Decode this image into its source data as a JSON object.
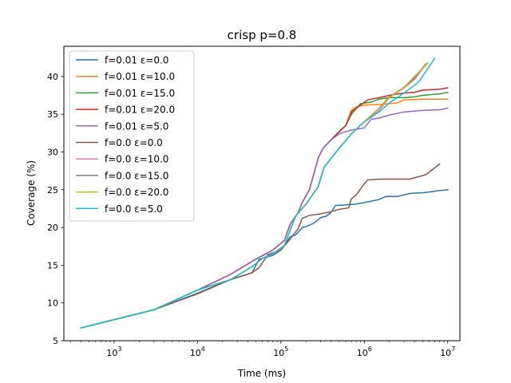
{
  "chart_data": {
    "type": "line",
    "title": "crisp p=0.8",
    "xlabel": "Time (ms)",
    "ylabel": "Coverage (%)",
    "xscale": "log",
    "xlim": [
      250,
      14000000
    ],
    "ylim": [
      5,
      44
    ],
    "x_tick_values": [
      1000,
      10000,
      100000,
      1000000,
      10000000
    ],
    "x_tick_labels": [
      {
        "base": "10",
        "exp": "3"
      },
      {
        "base": "10",
        "exp": "4"
      },
      {
        "base": "10",
        "exp": "5"
      },
      {
        "base": "10",
        "exp": "6"
      },
      {
        "base": "10",
        "exp": "7"
      }
    ],
    "y_ticks": [
      5,
      10,
      15,
      20,
      25,
      30,
      35,
      40
    ],
    "grid": false,
    "legend_position": "upper-left",
    "series": [
      {
        "name": "f=0.01 ε=0.0",
        "color": "#1f77b4",
        "points": [
          [
            400,
            6.7
          ],
          [
            3000,
            9.1
          ],
          [
            10000,
            11.3
          ],
          [
            25000,
            13.1
          ],
          [
            45000,
            14.0
          ],
          [
            55000,
            15.8
          ],
          [
            80000,
            16.3
          ],
          [
            100000,
            17.0
          ],
          [
            130000,
            18.8
          ],
          [
            150000,
            19.0
          ],
          [
            180000,
            20.0
          ],
          [
            200000,
            20.1
          ],
          [
            250000,
            20.6
          ],
          [
            300000,
            21.3
          ],
          [
            350000,
            21.5
          ],
          [
            400000,
            22.0
          ],
          [
            450000,
            22.9
          ],
          [
            600000,
            23.0
          ],
          [
            800000,
            23.1
          ],
          [
            1000000,
            23.3
          ],
          [
            1500000,
            23.7
          ],
          [
            1800000,
            24.1
          ],
          [
            2500000,
            24.1
          ],
          [
            3500000,
            24.5
          ],
          [
            5000000,
            24.6
          ],
          [
            6000000,
            24.7
          ],
          [
            8000000,
            24.9
          ],
          [
            10000000,
            25.0
          ]
        ]
      },
      {
        "name": "f=0.01 ε=10.0",
        "color": "#ff7f0e",
        "points": [
          [
            400,
            6.7
          ],
          [
            3000,
            9.1
          ],
          [
            10000,
            11.7
          ],
          [
            25000,
            13.8
          ],
          [
            50000,
            15.8
          ],
          [
            80000,
            17.0
          ],
          [
            110000,
            18.3
          ],
          [
            130000,
            20.5
          ],
          [
            160000,
            21.9
          ],
          [
            180000,
            23.3
          ],
          [
            220000,
            25.0
          ],
          [
            280000,
            29.2
          ],
          [
            320000,
            30.5
          ],
          [
            400000,
            31.6
          ],
          [
            500000,
            32.7
          ],
          [
            600000,
            33.5
          ],
          [
            700000,
            35.5
          ],
          [
            800000,
            36.0
          ],
          [
            1000000,
            36.2
          ],
          [
            1500000,
            36.3
          ],
          [
            2000000,
            36.4
          ],
          [
            2500000,
            36.5
          ],
          [
            3000000,
            36.9
          ],
          [
            5000000,
            37.0
          ],
          [
            10000000,
            37.0
          ]
        ]
      },
      {
        "name": "f=0.01 ε=15.0",
        "color": "#2ca02c",
        "points": [
          [
            400,
            6.7
          ],
          [
            3000,
            9.1
          ],
          [
            10000,
            11.7
          ],
          [
            25000,
            13.8
          ],
          [
            50000,
            15.8
          ],
          [
            80000,
            17.0
          ],
          [
            110000,
            18.3
          ],
          [
            130000,
            20.5
          ],
          [
            160000,
            21.9
          ],
          [
            180000,
            23.3
          ],
          [
            220000,
            25.0
          ],
          [
            280000,
            29.2
          ],
          [
            320000,
            30.5
          ],
          [
            400000,
            31.6
          ],
          [
            500000,
            32.7
          ],
          [
            600000,
            33.5
          ],
          [
            700000,
            35.0
          ],
          [
            900000,
            36.4
          ],
          [
            1200000,
            36.6
          ],
          [
            1500000,
            37.0
          ],
          [
            2000000,
            37.2
          ],
          [
            3000000,
            37.2
          ],
          [
            4000000,
            37.3
          ],
          [
            5000000,
            37.5
          ],
          [
            8000000,
            37.7
          ],
          [
            10000000,
            37.9
          ]
        ]
      },
      {
        "name": "f=0.01 ε=20.0",
        "color": "#d62728",
        "points": [
          [
            400,
            6.7
          ],
          [
            3000,
            9.1
          ],
          [
            10000,
            11.7
          ],
          [
            25000,
            13.8
          ],
          [
            50000,
            15.8
          ],
          [
            80000,
            17.0
          ],
          [
            110000,
            18.3
          ],
          [
            130000,
            20.5
          ],
          [
            160000,
            21.9
          ],
          [
            180000,
            23.3
          ],
          [
            220000,
            25.0
          ],
          [
            280000,
            29.2
          ],
          [
            320000,
            30.5
          ],
          [
            400000,
            31.6
          ],
          [
            500000,
            32.7
          ],
          [
            600000,
            33.5
          ],
          [
            700000,
            35.3
          ],
          [
            900000,
            36.2
          ],
          [
            1100000,
            36.9
          ],
          [
            1500000,
            37.2
          ],
          [
            2000000,
            37.5
          ],
          [
            3000000,
            37.8
          ],
          [
            4000000,
            37.9
          ],
          [
            5000000,
            38.2
          ],
          [
            8000000,
            38.3
          ],
          [
            10000000,
            38.5
          ]
        ]
      },
      {
        "name": "f=0.01 ε=5.0",
        "color": "#9467bd",
        "points": [
          [
            400,
            6.7
          ],
          [
            3000,
            9.1
          ],
          [
            10000,
            11.7
          ],
          [
            25000,
            13.8
          ],
          [
            50000,
            15.8
          ],
          [
            80000,
            17.0
          ],
          [
            110000,
            18.3
          ],
          [
            130000,
            20.5
          ],
          [
            160000,
            21.9
          ],
          [
            180000,
            23.3
          ],
          [
            220000,
            25.0
          ],
          [
            280000,
            29.2
          ],
          [
            320000,
            30.5
          ],
          [
            400000,
            31.6
          ],
          [
            500000,
            32.4
          ],
          [
            600000,
            32.7
          ],
          [
            700000,
            32.9
          ],
          [
            900000,
            33.1
          ],
          [
            1000000,
            33.2
          ],
          [
            1200000,
            34.3
          ],
          [
            1500000,
            34.5
          ],
          [
            2000000,
            34.9
          ],
          [
            3000000,
            35.3
          ],
          [
            5000000,
            35.5
          ],
          [
            8000000,
            35.6
          ],
          [
            10000000,
            35.8
          ]
        ]
      },
      {
        "name": "f=0.0 ε=0.0",
        "color": "#8c564b",
        "points": [
          [
            400,
            6.7
          ],
          [
            3000,
            9.1
          ],
          [
            10000,
            11.2
          ],
          [
            25000,
            13.1
          ],
          [
            45000,
            14.0
          ],
          [
            55000,
            14.7
          ],
          [
            70000,
            16.4
          ],
          [
            100000,
            17.0
          ],
          [
            130000,
            18.5
          ],
          [
            160000,
            19.8
          ],
          [
            180000,
            21.2
          ],
          [
            220000,
            21.6
          ],
          [
            300000,
            21.8
          ],
          [
            400000,
            22.1
          ],
          [
            500000,
            22.4
          ],
          [
            650000,
            22.6
          ],
          [
            700000,
            23.8
          ],
          [
            800000,
            24.3
          ],
          [
            1000000,
            25.8
          ],
          [
            1100000,
            26.3
          ],
          [
            1500000,
            26.4
          ],
          [
            2000000,
            26.4
          ],
          [
            3500000,
            26.4
          ],
          [
            5500000,
            27.0
          ],
          [
            8000000,
            28.4
          ]
        ]
      },
      {
        "name": "f=0.0 ε=10.0",
        "color": "#e377c2",
        "points": [
          [
            400,
            6.7
          ],
          [
            3000,
            9.1
          ],
          [
            10000,
            11.7
          ],
          [
            25000,
            13.1
          ],
          [
            45000,
            14.8
          ],
          [
            60000,
            15.9
          ],
          [
            80000,
            16.5
          ],
          [
            110000,
            17.6
          ],
          [
            150000,
            21.5
          ],
          [
            200000,
            23.1
          ],
          [
            280000,
            25.4
          ],
          [
            330000,
            28.0
          ],
          [
            500000,
            30.5
          ],
          [
            700000,
            32.4
          ],
          [
            1000000,
            34.0
          ],
          [
            1500000,
            35.5
          ],
          [
            2000000,
            37.2
          ],
          [
            3000000,
            38.5
          ],
          [
            4000000,
            39.6
          ],
          [
            5500000,
            41.6
          ]
        ]
      },
      {
        "name": "f=0.0 ε=15.0",
        "color": "#7f7f7f",
        "points": [
          [
            400,
            6.7
          ],
          [
            3000,
            9.1
          ],
          [
            10000,
            11.7
          ],
          [
            25000,
            13.1
          ],
          [
            45000,
            14.8
          ],
          [
            60000,
            15.9
          ],
          [
            80000,
            16.5
          ],
          [
            110000,
            17.6
          ],
          [
            150000,
            21.5
          ],
          [
            200000,
            23.1
          ],
          [
            280000,
            25.4
          ],
          [
            330000,
            28.0
          ],
          [
            500000,
            30.5
          ],
          [
            700000,
            32.4
          ],
          [
            1000000,
            34.0
          ],
          [
            1500000,
            35.8
          ],
          [
            2000000,
            37.3
          ],
          [
            3000000,
            38.6
          ],
          [
            4000000,
            39.8
          ],
          [
            5500000,
            41.7
          ]
        ]
      },
      {
        "name": "f=0.0 ε=20.0",
        "color": "#bcbd22",
        "points": [
          [
            400,
            6.7
          ],
          [
            3000,
            9.1
          ],
          [
            10000,
            11.7
          ],
          [
            25000,
            13.1
          ],
          [
            45000,
            14.8
          ],
          [
            60000,
            15.9
          ],
          [
            80000,
            16.5
          ],
          [
            110000,
            17.6
          ],
          [
            150000,
            21.5
          ],
          [
            200000,
            23.1
          ],
          [
            280000,
            25.4
          ],
          [
            330000,
            28.0
          ],
          [
            500000,
            30.5
          ],
          [
            700000,
            32.4
          ],
          [
            1000000,
            34.0
          ],
          [
            1500000,
            35.8
          ],
          [
            2000000,
            37.2
          ],
          [
            3000000,
            38.6
          ],
          [
            4000000,
            40.0
          ],
          [
            5800000,
            41.8
          ]
        ]
      },
      {
        "name": "f=0.0 ε=5.0",
        "color": "#17becf",
        "points": [
          [
            400,
            6.7
          ],
          [
            3000,
            9.1
          ],
          [
            10000,
            11.7
          ],
          [
            25000,
            13.1
          ],
          [
            45000,
            14.8
          ],
          [
            60000,
            15.9
          ],
          [
            80000,
            16.5
          ],
          [
            110000,
            17.6
          ],
          [
            150000,
            21.5
          ],
          [
            200000,
            23.1
          ],
          [
            280000,
            25.4
          ],
          [
            330000,
            28.0
          ],
          [
            500000,
            30.5
          ],
          [
            700000,
            32.4
          ],
          [
            1000000,
            34.0
          ],
          [
            1500000,
            35.3
          ],
          [
            2000000,
            36.5
          ],
          [
            3000000,
            37.8
          ],
          [
            4500000,
            39.3
          ],
          [
            7000000,
            42.4
          ]
        ]
      }
    ]
  }
}
